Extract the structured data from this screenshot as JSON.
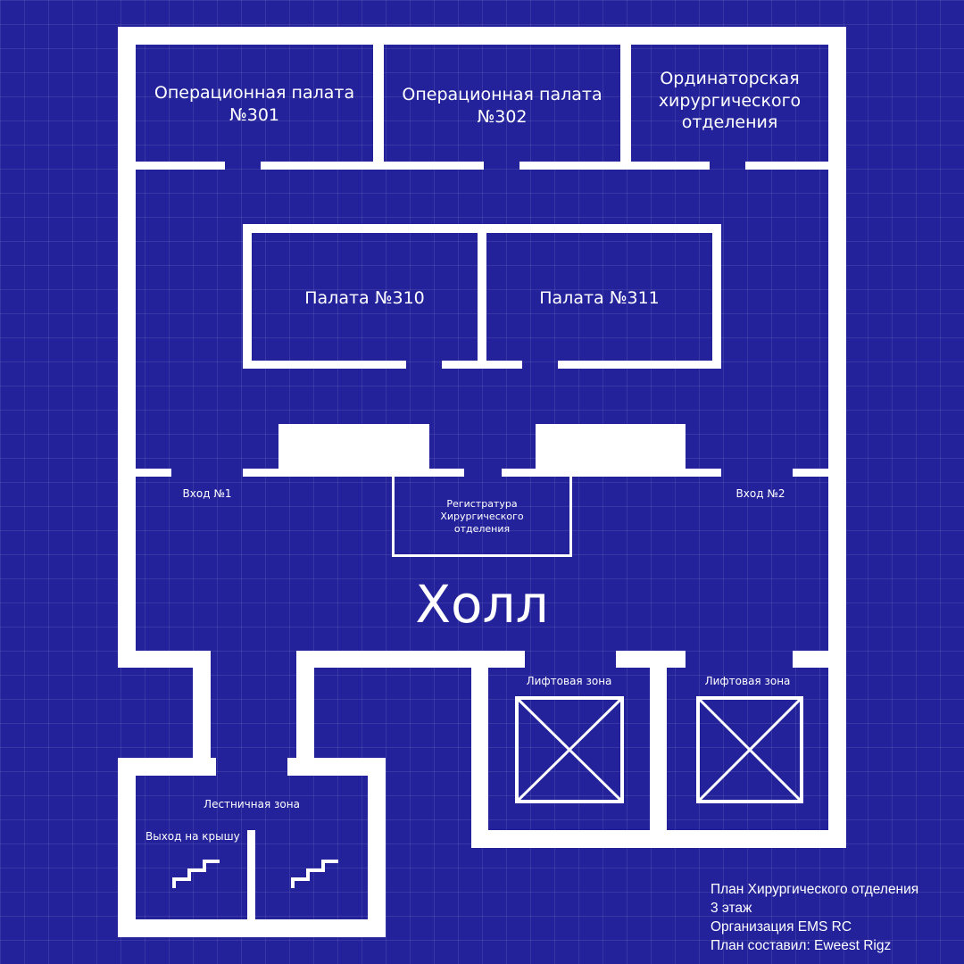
{
  "rooms": {
    "op301": "Операционная палата\n№301",
    "op302": "Операционная палата\n№302",
    "staff": "Ординаторская\nхирургического\nотделения",
    "ward310": "Палата №310",
    "ward311": "Палата №311",
    "entrance1": "Вход №1",
    "entrance2": "Вход №2",
    "reception": "Регистратура\nХирургического\nотделения",
    "hall": "Холл",
    "elevator_left": "Лифтовая зона",
    "elevator_right": "Лифтовая зона",
    "stairs": "Лестничная зона",
    "roof_exit": "Выход на крышу"
  },
  "legend": {
    "line1": "План Хирургического отделения",
    "line2": "3 этаж",
    "line3": "Организация EMS RC",
    "line4": "План составил: Eweest Rigz"
  },
  "colors": {
    "background": "#23229a",
    "walls": "#ffffff",
    "grid": "rgba(255,255,255,0.09)"
  }
}
